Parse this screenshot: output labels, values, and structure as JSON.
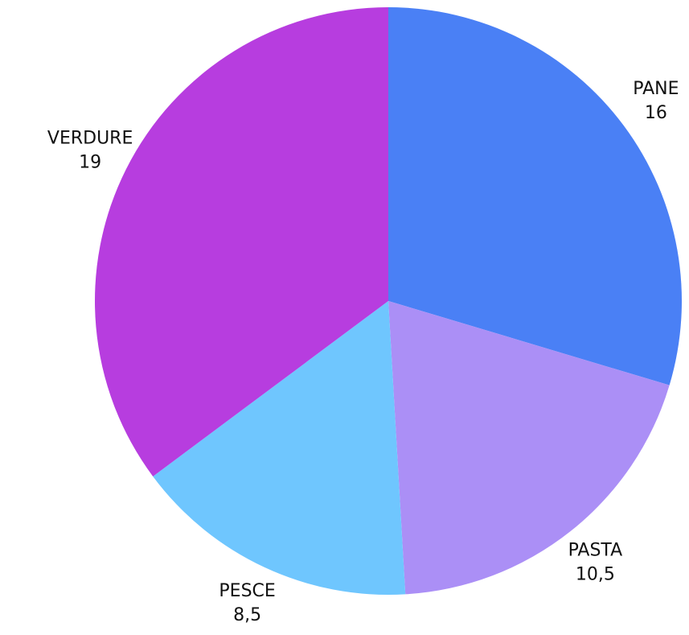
{
  "chart_data": {
    "type": "pie",
    "categories": [
      "PANE",
      "PASTA",
      "PESCE",
      "VERDURE"
    ],
    "values": [
      16,
      10.5,
      8.5,
      19
    ],
    "value_labels": [
      "16",
      "10,5",
      "8,5",
      "19"
    ],
    "colors": [
      "#4a80f5",
      "#ab8ff6",
      "#6fc6fe",
      "#b73ddf"
    ]
  }
}
